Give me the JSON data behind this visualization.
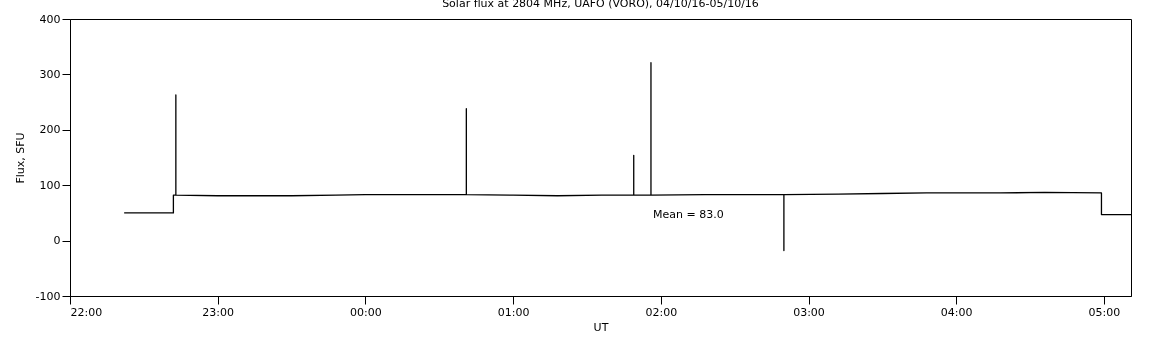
{
  "chart_data": {
    "type": "line",
    "title": "Solar flux at 2804 MHz, UAFO (VORO),  04/10/16-05/10/16",
    "xlabel": "UT",
    "ylabel": "Flux, SFU",
    "xlim": [
      "--10-04T22:00",
      "--10-05T05:11"
    ],
    "ylim": [
      -100,
      400
    ],
    "xticks": [
      {
        "value": "--10-04T22:00",
        "label": "22:00"
      },
      {
        "value": "--10-04T23:00",
        "label": "23:00"
      },
      {
        "value": "--10-05T00:00",
        "label": "00:00"
      },
      {
        "value": "--10-05T01:00",
        "label": "01:00"
      },
      {
        "value": "--10-05T02:00",
        "label": "02:00"
      },
      {
        "value": "--10-05T03:00",
        "label": "03:00"
      },
      {
        "value": "--10-05T04:00",
        "label": "04:00"
      },
      {
        "value": "--10-05T05:00",
        "label": "05:00"
      }
    ],
    "yticks": [
      -100,
      0,
      100,
      200,
      300,
      400
    ],
    "series": [
      {
        "color": "#000000",
        "x": [
          "--10-04T22:22",
          "--10-04T22:42",
          "--10-04T22:42",
          "--10-04T22:43",
          "--10-04T22:43",
          "--10-04T22:43",
          "--10-04T23:00",
          "--10-04T23:30",
          "--10-04T23:48",
          "--10-05T00:00",
          "--10-05T00:18",
          "--10-05T00:41",
          "--10-05T00:41",
          "--10-05T00:41",
          "--10-05T01:00",
          "--10-05T01:18",
          "--10-05T01:36",
          "--10-05T01:49",
          "--10-05T01:49",
          "--10-05T01:49",
          "--10-05T01:56",
          "--10-05T01:56",
          "--10-05T01:56",
          "--10-05T02:18",
          "--10-05T02:36",
          "--10-05T02:50",
          "--10-05T02:50",
          "--10-05T02:50",
          "--10-05T03:12",
          "--10-05T03:30",
          "--10-05T03:48",
          "--10-05T04:18",
          "--10-05T04:36",
          "--10-05T04:59",
          "--10-05T04:59",
          "--10-05T05:11"
        ],
        "values": [
          50,
          50,
          82,
          82,
          263,
          82,
          81,
          81,
          82,
          83,
          83,
          83,
          238,
          83,
          82,
          81,
          82,
          82,
          154,
          82,
          82,
          321,
          82,
          83,
          83,
          83,
          -18,
          83,
          84,
          85,
          86,
          86,
          87,
          86,
          47,
          47
        ]
      }
    ],
    "annotations": [
      "Mean =   83.0"
    ]
  }
}
